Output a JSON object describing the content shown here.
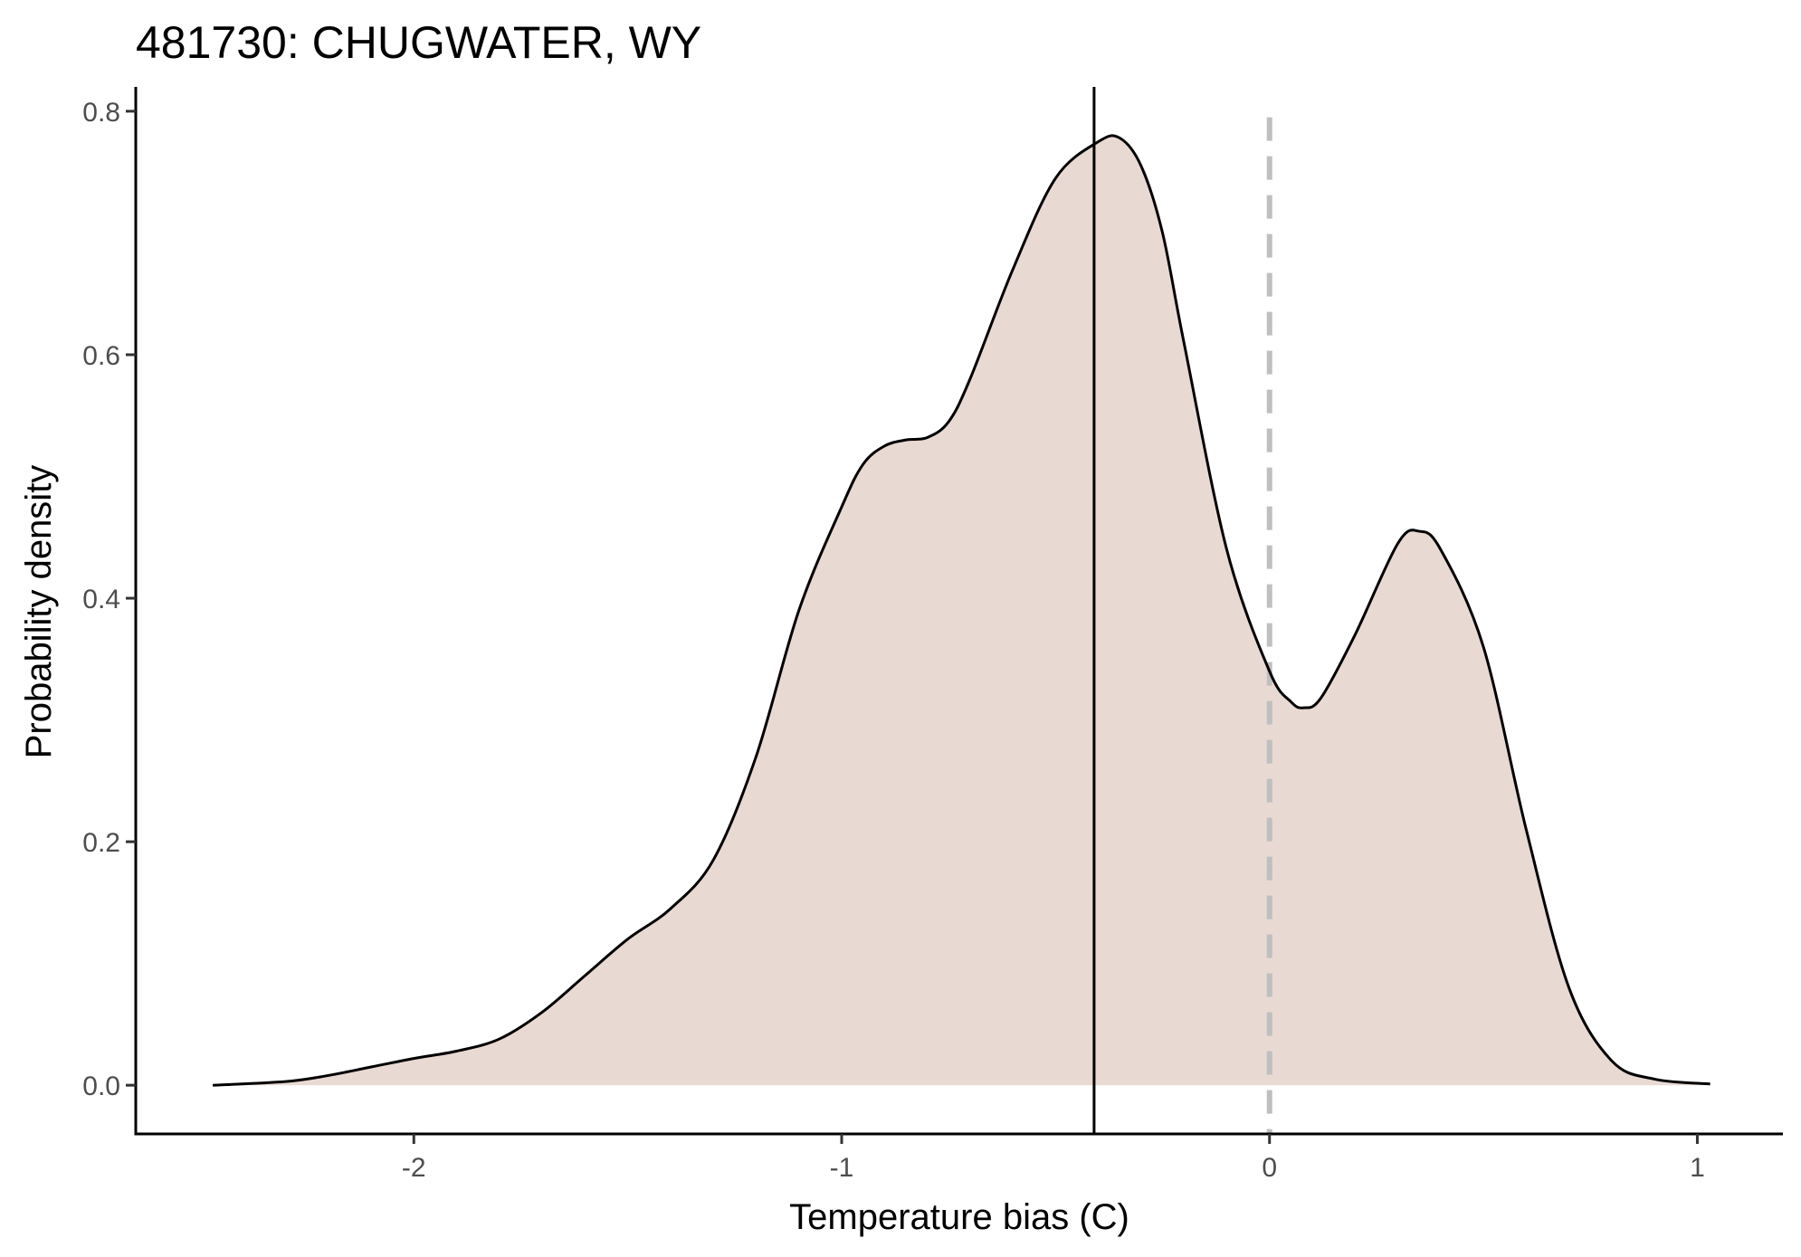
{
  "chart_data": {
    "type": "area",
    "title": "481730: CHUGWATER, WY",
    "xlabel": "Temperature bias (C)",
    "ylabel": "Probability density",
    "xlim": [
      -2.65,
      1.2
    ],
    "ylim": [
      -0.04,
      0.82
    ],
    "x_ticks": [
      -2,
      -1,
      0,
      1
    ],
    "x_tick_labels": [
      "-2",
      "-1",
      "0",
      "1"
    ],
    "y_ticks": [
      0.0,
      0.2,
      0.4,
      0.6,
      0.8
    ],
    "y_tick_labels": [
      "0.0",
      "0.2",
      "0.4",
      "0.6",
      "0.8"
    ],
    "grid": false,
    "legend": "none",
    "fill_color": "#e9d9d3",
    "line_color": "#000000",
    "reference_lines": [
      {
        "name": "mean-bias",
        "x": -0.41,
        "style": "solid",
        "color": "#000000"
      },
      {
        "name": "zero-bias",
        "x": 0.0,
        "style": "dashed",
        "color": "#bfbfbf"
      }
    ],
    "series": [
      {
        "x": [
          -2.47,
          -2.3,
          -2.2,
          -2.1,
          -2.0,
          -1.9,
          -1.8,
          -1.7,
          -1.6,
          -1.5,
          -1.4,
          -1.3,
          -1.2,
          -1.1,
          -1.0,
          -0.95,
          -0.9,
          -0.85,
          -0.8,
          -0.75,
          -0.7,
          -0.6,
          -0.5,
          -0.4,
          -0.35,
          -0.3,
          -0.25,
          -0.2,
          -0.1,
          0.0,
          0.05,
          0.08,
          0.12,
          0.2,
          0.3,
          0.35,
          0.4,
          0.5,
          0.6,
          0.7,
          0.8,
          0.9,
          1.03
        ],
        "values": [
          0.0,
          0.003,
          0.008,
          0.015,
          0.022,
          0.028,
          0.038,
          0.06,
          0.09,
          0.12,
          0.145,
          0.185,
          0.27,
          0.39,
          0.475,
          0.51,
          0.525,
          0.53,
          0.532,
          0.545,
          0.58,
          0.67,
          0.745,
          0.775,
          0.778,
          0.755,
          0.7,
          0.61,
          0.44,
          0.34,
          0.315,
          0.31,
          0.318,
          0.37,
          0.445,
          0.455,
          0.44,
          0.36,
          0.21,
          0.08,
          0.02,
          0.005,
          0.001
        ]
      }
    ]
  }
}
